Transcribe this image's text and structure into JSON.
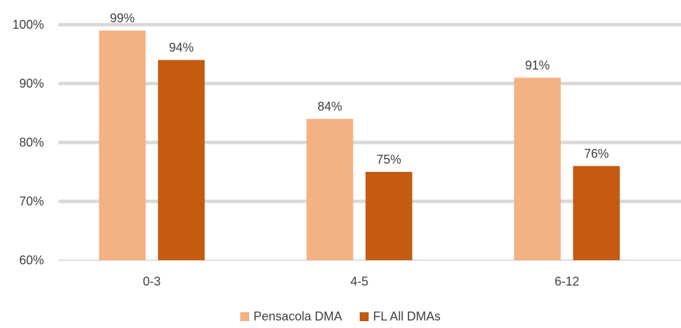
{
  "chart_data": {
    "type": "bar",
    "categories": [
      "0-3",
      "4-5",
      "6-12"
    ],
    "series": [
      {
        "name": "Pensacola DMA",
        "values": [
          99,
          84,
          91
        ],
        "labels": [
          "99%",
          "84%",
          "91%"
        ],
        "color": "#F4B183"
      },
      {
        "name": "FL All DMAs",
        "values": [
          94,
          75,
          76
        ],
        "labels": [
          "94%",
          "75%",
          "76%"
        ],
        "color": "#C55A11"
      }
    ],
    "yticks": [
      60,
      70,
      80,
      90,
      100
    ],
    "ytick_labels": [
      "60%",
      "70%",
      "80%",
      "90%",
      "100%"
    ],
    "ylim": [
      60,
      100
    ],
    "grid": true,
    "legend": "bottom",
    "gridColor": "#D9D9D9"
  }
}
